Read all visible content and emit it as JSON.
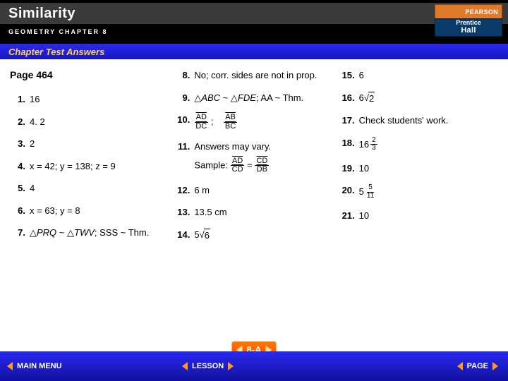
{
  "header": {
    "title": "Similarity",
    "subtitle": "GEOMETRY CHAPTER 8",
    "brand_top": "PEARSON",
    "brand_line1": "Prentice",
    "brand_line2": "Hall"
  },
  "section_bar": "Chapter Test Answers",
  "page_label": "Page 464",
  "col1": [
    {
      "n": "1.",
      "t": "16"
    },
    {
      "n": "2.",
      "t": "4. 2"
    },
    {
      "n": "3.",
      "t": "2"
    }
  ],
  "col1_4": {
    "n": "4.",
    "t": "x = 42; y = 138; z = 9"
  },
  "col1_5": {
    "n": "5.",
    "t": "4"
  },
  "col1_6": {
    "n": "6.",
    "t": "x = 63; y = 8"
  },
  "col1_7": {
    "n": "7.",
    "pre": "△",
    "a": "PRQ",
    "mid": " ~ △",
    "b": "TWV",
    "post": "; SSS ~ Thm."
  },
  "col2_8": {
    "n": "8.",
    "t": "No; corr. sides are not in prop."
  },
  "col2_9": {
    "n": "9.",
    "pre": "△",
    "a": "ABC",
    "mid": " ~ △",
    "b": "FDE",
    "post": "; AA ~ Thm."
  },
  "col2_10": {
    "n": "10.",
    "f1t": "AD",
    "f1b": "DC",
    "sep": ";",
    "f2t": "AB",
    "f2b": "BC"
  },
  "col2_11": {
    "n": "11.",
    "t": "Answers may vary."
  },
  "col2_11s": {
    "lead": "Sample: ",
    "f1t": "AD",
    "f1b": "CD",
    "eq": " = ",
    "f2t": "CD",
    "f2b": "DB"
  },
  "col2_12": {
    "n": "12.",
    "t": "6 m"
  },
  "col2_13": {
    "n": "13.",
    "t": "13.5 cm"
  },
  "col2_14": {
    "n": "14.",
    "whole": "5",
    "rad": "6"
  },
  "col3_15": {
    "n": "15.",
    "t": "6"
  },
  "col3_16": {
    "n": "16.",
    "whole": "6",
    "rad": "2"
  },
  "col3_17": {
    "n": "17.",
    "t": "Check students' work."
  },
  "col3_18": {
    "n": "18.",
    "whole": "16",
    "ft": "2",
    "fb": "3"
  },
  "col3_19": {
    "n": "19.",
    "whole": "10",
    "ft": "",
    "fb": ""
  },
  "col3_20": {
    "n": "20.",
    "whole": "5",
    "ft": "5",
    "fb": "11"
  },
  "col3_21": {
    "n": "21.",
    "whole": "10",
    "ft": "",
    "fb": ""
  },
  "footer": {
    "main_menu": "MAIN MENU",
    "lesson": "LESSON",
    "page": "PAGE",
    "chip": "8-A"
  },
  "colors": {
    "header_bg": "#000000",
    "title_band": "#3a3a3a",
    "section_grad_top": "#2a2af0",
    "section_grad_bot": "#1616c0",
    "section_text": "#ffd24a",
    "footer_grad_top": "#2a2af0",
    "footer_grad_bot": "#1010a0",
    "chevron": "#ff9a1a",
    "chip_grad_top": "#ff7a00",
    "chip_grad_bot": "#ff4a00",
    "pearson_top": "#e07a2a",
    "pearson_bot": "#0a3a6a"
  }
}
